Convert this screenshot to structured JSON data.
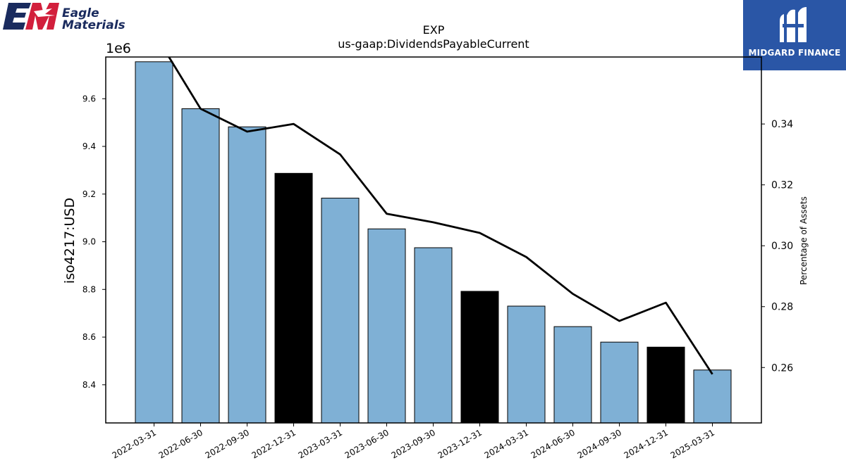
{
  "brand_left": {
    "line1": "Eagle",
    "line2": "Materials",
    "mark": "EM"
  },
  "brand_right": {
    "name": "MIDGARD FINANCE"
  },
  "chart_data": {
    "type": "bar",
    "title": "EXP",
    "subtitle": "us-gaap:DividendsPayableCurrent",
    "ylabel": "iso4217:USD",
    "y_offset_label": "1e6",
    "y2label": "Percentage of Assets",
    "categories": [
      "2022-03-31",
      "2022-06-30",
      "2022-09-30",
      "2022-12-31",
      "2023-03-31",
      "2023-06-30",
      "2023-09-30",
      "2023-12-31",
      "2024-03-31",
      "2024-06-30",
      "2024-09-30",
      "2024-12-31",
      "2025-03-31"
    ],
    "values": [
      9755000,
      9558000,
      9482000,
      9287000,
      9183000,
      9054000,
      8975000,
      8792000,
      8730000,
      8644000,
      8579000,
      8558000,
      8462000
    ],
    "bar_colors": [
      "#7fb0d5",
      "#7fb0d5",
      "#7fb0d5",
      "#000000",
      "#7fb0d5",
      "#7fb0d5",
      "#7fb0d5",
      "#000000",
      "#7fb0d5",
      "#7fb0d5",
      "#7fb0d5",
      "#000000",
      "#7fb0d5"
    ],
    "line_series": {
      "values": [
        0.37,
        0.345,
        0.3375,
        0.34,
        0.33,
        0.3105,
        0.3077,
        0.3042,
        0.2963,
        0.2842,
        0.2753,
        0.2813,
        0.2578
      ]
    },
    "ylim": [
      8240000,
      9775000
    ],
    "y_ticks": [
      8.4,
      8.6,
      8.8,
      9.0,
      9.2,
      9.4,
      9.6
    ],
    "y2lim": [
      0.2418,
      0.362
    ],
    "y2_ticks": [
      0.26,
      0.28,
      0.3,
      0.32,
      0.34
    ],
    "grid": false
  }
}
